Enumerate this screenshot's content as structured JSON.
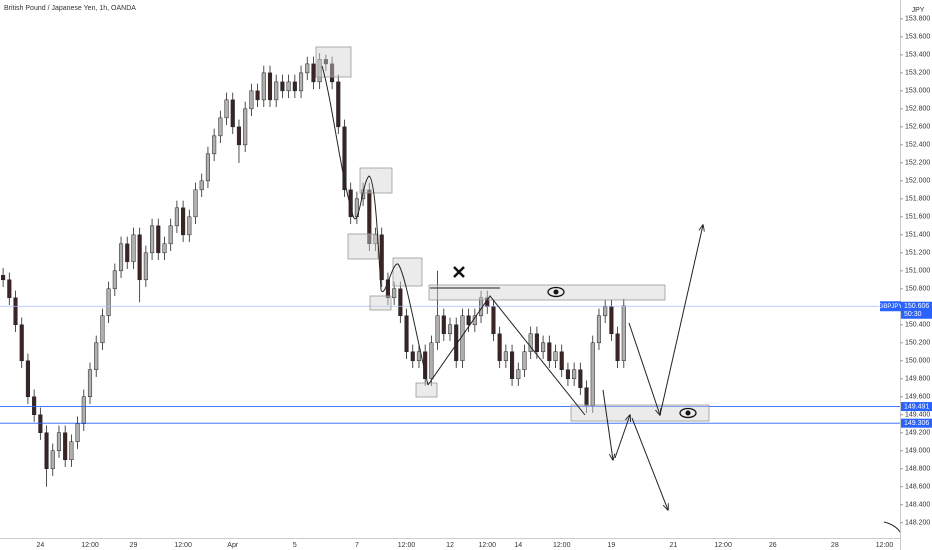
{
  "chart_data": {
    "type": "candlestick",
    "title": "British Pound / Japanese Yen, 1h, OANDA",
    "y_axis_label": "JPY",
    "up_color": "#b0b0b0",
    "down_color": "#3b2424",
    "ylim": [
      148.03,
      154.01
    ],
    "yticks": [
      {
        "value": 153.8,
        "label": "153.800"
      },
      {
        "value": 153.6,
        "label": "153.600"
      },
      {
        "value": 153.4,
        "label": "153.400"
      },
      {
        "value": 153.2,
        "label": "153.200"
      },
      {
        "value": 153.0,
        "label": "153.000"
      },
      {
        "value": 152.8,
        "label": "152.800"
      },
      {
        "value": 152.6,
        "label": "152.600"
      },
      {
        "value": 152.4,
        "label": "152.400"
      },
      {
        "value": 152.2,
        "label": "152.200"
      },
      {
        "value": 152.0,
        "label": "152.000"
      },
      {
        "value": 151.8,
        "label": "151.800"
      },
      {
        "value": 151.6,
        "label": "151.600"
      },
      {
        "value": 151.4,
        "label": "151.400"
      },
      {
        "value": 151.2,
        "label": "151.200"
      },
      {
        "value": 151.0,
        "label": "151.000"
      },
      {
        "value": 150.8,
        "label": "150.800"
      },
      {
        "value": 150.4,
        "label": "150.400"
      },
      {
        "value": 150.2,
        "label": "150.200"
      },
      {
        "value": 150.0,
        "label": "150.000"
      },
      {
        "value": 149.8,
        "label": "149.800"
      },
      {
        "value": 149.6,
        "label": "149.600"
      },
      {
        "value": 149.4,
        "label": "149.400"
      },
      {
        "value": 149.2,
        "label": "149.200"
      },
      {
        "value": 149.0,
        "label": "149.000"
      },
      {
        "value": 148.8,
        "label": "148.800"
      },
      {
        "value": 148.6,
        "label": "148.600"
      },
      {
        "value": 148.4,
        "label": "148.400"
      },
      {
        "value": 148.2,
        "label": "148.200"
      }
    ],
    "categories": [
      null,
      null,
      null,
      null,
      null,
      null,
      "24",
      null,
      null,
      null,
      null,
      null,
      null,
      null,
      "12:00",
      null,
      null,
      null,
      null,
      null,
      null,
      "29",
      null,
      null,
      null,
      null,
      null,
      null,
      null,
      "12:00",
      null,
      null,
      null,
      null,
      null,
      null,
      null,
      "Apr",
      null,
      null,
      null,
      null,
      null,
      null,
      null,
      null,
      null,
      "5",
      null,
      null,
      null,
      null,
      null,
      null,
      null,
      null,
      null,
      "7",
      null,
      null,
      null,
      null,
      null,
      null,
      null,
      "12:00",
      null,
      null,
      null,
      null,
      null,
      null,
      "12",
      null,
      null,
      null,
      null,
      null,
      "12:00",
      null,
      null,
      null,
      null,
      "14",
      null,
      null,
      null,
      null,
      null,
      null,
      "12:00",
      null,
      null,
      null,
      null,
      null,
      null,
      null,
      "19",
      null,
      null,
      null,
      null,
      null,
      null,
      null,
      null,
      null,
      "21",
      null,
      null,
      null,
      null,
      null,
      null,
      null,
      "12:00",
      null,
      null,
      null,
      null,
      null,
      null,
      null,
      "26",
      null,
      null,
      null,
      null,
      null,
      null,
      null,
      null,
      null,
      "28",
      null,
      null,
      null,
      null,
      null,
      null,
      null,
      "12:00",
      null,
      null
    ],
    "open": [
      150.95,
      150.9,
      150.7,
      150.4,
      150.0,
      149.6,
      149.4,
      149.2,
      148.8,
      149.0,
      149.2,
      148.9,
      149.1,
      149.3,
      149.6,
      149.9,
      150.2,
      150.5,
      150.8,
      151.0,
      151.3,
      151.1,
      151.4,
      150.9,
      151.2,
      151.5,
      151.2,
      151.3,
      151.5,
      151.7,
      151.4,
      151.6,
      151.9,
      152.0,
      152.3,
      152.5,
      152.7,
      152.9,
      152.6,
      152.4,
      152.8,
      153.0,
      152.9,
      153.2,
      152.9,
      153.1,
      153.0,
      153.1,
      153.0,
      153.2,
      153.3,
      153.1,
      153.35,
      153.3,
      153.1,
      152.6,
      151.9,
      151.6,
      151.8,
      151.9,
      151.3,
      151.4,
      150.9,
      150.7,
      150.8,
      150.5,
      150.1,
      150.0,
      150.1,
      149.8,
      150.2,
      150.5,
      150.3,
      150.4,
      150.0,
      150.5,
      150.4,
      150.5,
      150.7,
      150.6,
      150.3,
      150.0,
      150.1,
      149.8,
      149.9,
      150.1,
      150.3,
      150.1,
      150.2,
      150.0,
      150.1,
      149.9,
      149.8,
      149.9,
      149.7,
      149.5,
      150.2,
      150.5,
      150.6,
      150.3,
      150.0,
      null,
      null,
      null,
      null,
      null,
      null,
      null,
      null,
      null,
      null,
      null,
      null,
      null,
      null,
      null,
      null,
      null,
      null,
      null,
      null,
      null,
      null,
      null,
      null,
      null,
      null,
      null,
      null,
      null,
      null,
      null,
      null,
      null,
      null,
      null,
      null,
      null,
      null,
      null,
      null,
      null,
      null,
      null,
      null
    ],
    "high": [
      151.03,
      150.98,
      150.78,
      150.48,
      150.08,
      149.68,
      149.48,
      149.28,
      149.08,
      149.28,
      149.28,
      149.18,
      149.38,
      149.68,
      149.98,
      150.28,
      150.58,
      150.88,
      151.08,
      151.38,
      151.38,
      151.48,
      151.48,
      151.28,
      151.58,
      151.58,
      151.38,
      151.58,
      151.78,
      151.78,
      151.68,
      151.98,
      152.08,
      152.38,
      152.58,
      152.78,
      152.98,
      152.98,
      152.68,
      152.88,
      153.08,
      153.08,
      153.28,
      153.28,
      153.18,
      153.18,
      153.18,
      153.18,
      153.28,
      153.38,
      153.38,
      153.42,
      153.4,
      153.38,
      153.18,
      152.68,
      151.98,
      151.88,
      151.98,
      151.98,
      151.48,
      151.48,
      150.98,
      150.88,
      150.88,
      150.58,
      150.18,
      150.18,
      150.18,
      150.28,
      151.0,
      150.58,
      150.48,
      150.48,
      150.58,
      150.58,
      150.58,
      150.78,
      150.78,
      150.68,
      150.38,
      150.18,
      150.18,
      149.98,
      150.18,
      150.38,
      150.38,
      150.28,
      150.28,
      150.18,
      150.18,
      149.98,
      149.98,
      149.98,
      149.78,
      150.28,
      150.58,
      150.68,
      150.68,
      150.38,
      150.69,
      null,
      null,
      null,
      null,
      null,
      null,
      null,
      null,
      null,
      null,
      null,
      null,
      null,
      null,
      null,
      null,
      null,
      null,
      null,
      null,
      null,
      null,
      null,
      null,
      null,
      null,
      null,
      null,
      null,
      null,
      null,
      null,
      null,
      null,
      null,
      null,
      null,
      null,
      null,
      null,
      null,
      null,
      null,
      null
    ],
    "low": [
      150.82,
      150.62,
      150.32,
      149.92,
      149.52,
      149.32,
      149.12,
      148.6,
      148.72,
      148.92,
      148.82,
      148.82,
      149.02,
      149.22,
      149.52,
      149.82,
      150.12,
      150.42,
      150.72,
      150.92,
      151.02,
      151.02,
      150.65,
      150.82,
      151.12,
      151.12,
      151.12,
      151.22,
      151.42,
      151.32,
      151.32,
      151.52,
      151.82,
      151.92,
      152.22,
      152.42,
      152.62,
      152.52,
      152.2,
      152.32,
      152.72,
      152.82,
      152.82,
      152.82,
      152.82,
      152.92,
      152.92,
      152.92,
      152.92,
      153.12,
      153.02,
      153.02,
      153.22,
      153.02,
      152.52,
      151.82,
      151.52,
      151.52,
      151.72,
      151.22,
      151.22,
      150.82,
      150.62,
      150.62,
      150.42,
      150.02,
      149.92,
      149.92,
      149.72,
      149.72,
      150.12,
      150.22,
      150.22,
      149.92,
      149.92,
      150.32,
      150.32,
      150.42,
      150.52,
      150.22,
      149.92,
      149.92,
      149.72,
      149.72,
      149.82,
      150.02,
      150.02,
      150.02,
      149.92,
      149.92,
      149.82,
      149.72,
      149.72,
      149.62,
      149.42,
      149.42,
      150.12,
      150.42,
      150.22,
      149.92,
      149.92,
      null,
      null,
      null,
      null,
      null,
      null,
      null,
      null,
      null,
      null,
      null,
      null,
      null,
      null,
      null,
      null,
      null,
      null,
      null,
      null,
      null,
      null,
      null,
      null,
      null,
      null,
      null,
      null,
      null,
      null,
      null,
      null,
      null,
      null,
      null,
      null,
      null,
      null,
      null,
      null,
      null,
      null,
      null,
      null
    ],
    "close": [
      150.9,
      150.7,
      150.4,
      150.0,
      149.6,
      149.4,
      149.2,
      148.8,
      149.0,
      149.2,
      148.9,
      149.1,
      149.3,
      149.6,
      149.9,
      150.2,
      150.5,
      150.8,
      151.0,
      151.3,
      151.1,
      151.4,
      150.9,
      151.2,
      151.5,
      151.2,
      151.3,
      151.5,
      151.7,
      151.4,
      151.6,
      151.9,
      152.0,
      152.3,
      152.5,
      152.7,
      152.9,
      152.6,
      152.4,
      152.8,
      153.0,
      152.9,
      153.2,
      152.9,
      153.1,
      153.0,
      153.1,
      153.0,
      153.2,
      153.3,
      153.1,
      153.35,
      153.3,
      153.1,
      152.6,
      151.9,
      151.6,
      151.8,
      151.9,
      151.3,
      151.4,
      150.9,
      150.7,
      150.8,
      150.5,
      150.1,
      150.0,
      150.1,
      149.8,
      150.2,
      150.5,
      150.3,
      150.4,
      150.0,
      150.5,
      150.4,
      150.5,
      150.7,
      150.6,
      150.3,
      150.0,
      150.1,
      149.8,
      149.9,
      150.1,
      150.3,
      150.1,
      150.2,
      150.0,
      150.1,
      149.9,
      149.8,
      149.9,
      149.7,
      149.5,
      150.2,
      150.5,
      150.6,
      150.3,
      150.0,
      150.61,
      null,
      null,
      null,
      null,
      null,
      null,
      null,
      null,
      null,
      null,
      null,
      null,
      null,
      null,
      null,
      null,
      null,
      null,
      null,
      null,
      null,
      null,
      null,
      null,
      null,
      null,
      null,
      null,
      null,
      null,
      null,
      null,
      null,
      null,
      null,
      null,
      null,
      null,
      null,
      null,
      null,
      null,
      null,
      null
    ],
    "price_lines": [
      {
        "name": "GBPJPY",
        "value": 150.606,
        "label": "150.606",
        "countdown": "50:30",
        "color": "#2962ff",
        "line_color": "#a9bcf5"
      },
      {
        "value": 149.491,
        "label": "149.491",
        "color": "#2962ff",
        "line_color": "#2962ff"
      },
      {
        "value": 149.306,
        "label": "149.306",
        "color": "#2962ff",
        "line_color": "#2962ff"
      }
    ]
  }
}
